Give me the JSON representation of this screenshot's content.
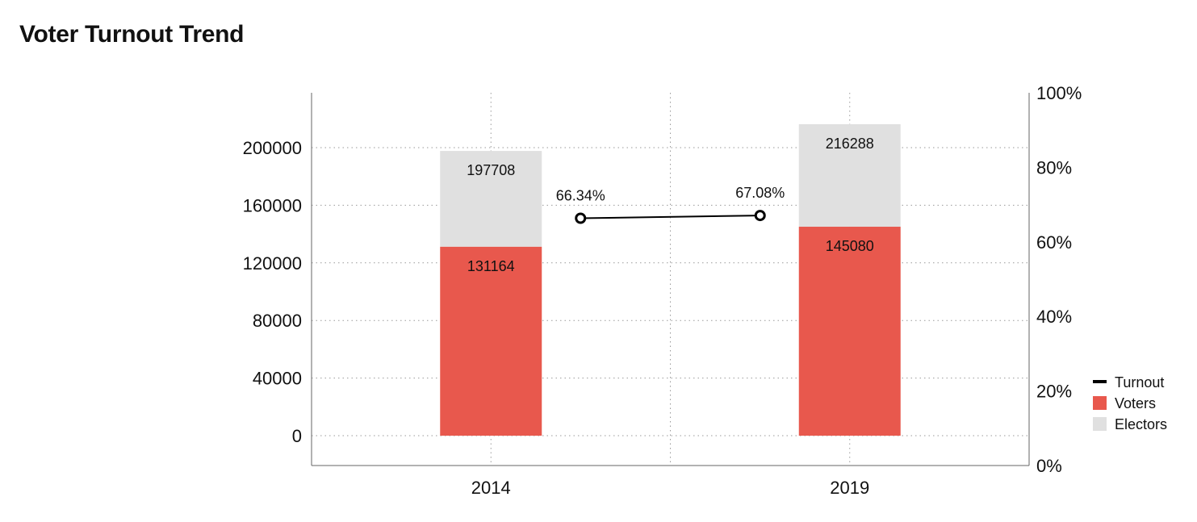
{
  "title": "Voter Turnout Trend",
  "chart_data": {
    "type": "bar",
    "title": "Voter Turnout Trend",
    "categories": [
      "2014",
      "2019"
    ],
    "series": [
      {
        "name": "Voters",
        "values": [
          131164,
          145080
        ],
        "color": "#e8584d"
      },
      {
        "name": "Electors",
        "values": [
          197708,
          216288
        ],
        "color": "#e0e0e0"
      },
      {
        "name": "Turnout",
        "values": [
          66.34,
          67.08
        ],
        "color": "#000000"
      }
    ],
    "turnout_labels": [
      "66.34%",
      "67.08%"
    ],
    "y_left": {
      "ticks": [
        0,
        40000,
        80000,
        120000,
        160000,
        200000
      ],
      "tick_labels": [
        "0",
        "40000",
        "80000",
        "120000",
        "160000",
        "200000"
      ]
    },
    "y_right": {
      "ticks": [
        0,
        20,
        40,
        60,
        80,
        100
      ],
      "tick_labels": [
        "0%",
        "20%",
        "40%",
        "60%",
        "80%",
        "100%"
      ]
    },
    "grid": true,
    "legend": {
      "position": "right",
      "items": [
        "Turnout",
        "Voters",
        "Electors"
      ]
    }
  }
}
